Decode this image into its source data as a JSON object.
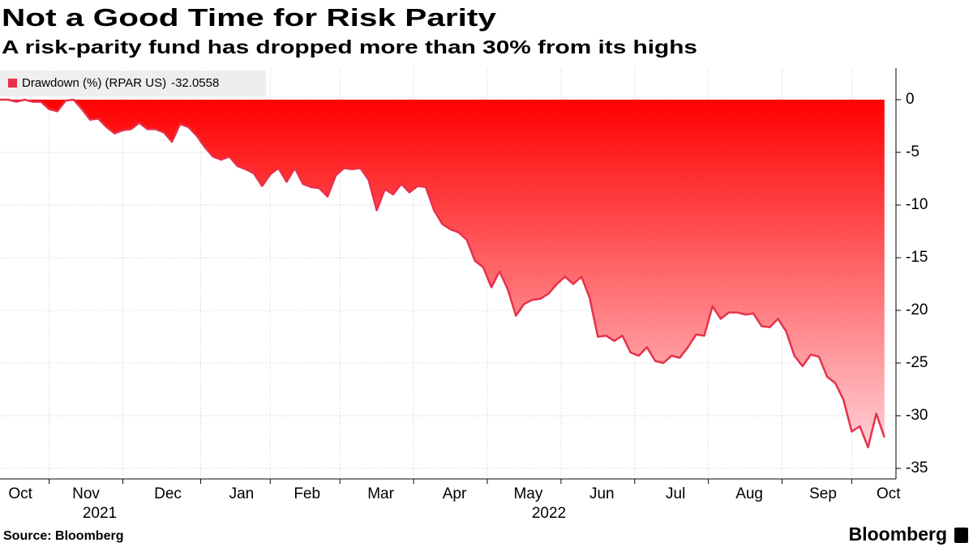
{
  "chart_data": {
    "type": "area",
    "title": "Not a Good Time for Risk Parity",
    "subtitle": "A risk-parity fund has dropped more than 30% from its highs",
    "source": "Source: Bloomberg",
    "logo": "Bloomberg",
    "categories": [
      null,
      null,
      "Oct",
      null,
      null,
      null,
      null,
      null,
      null,
      null,
      "Nov",
      null,
      null,
      null,
      null,
      null,
      null,
      null,
      null,
      null,
      "Dec",
      null,
      null,
      null,
      null,
      null,
      null,
      null,
      null,
      "Jan",
      null,
      null,
      null,
      null,
      null,
      null,
      null,
      "Feb",
      null,
      null,
      null,
      null,
      null,
      null,
      null,
      null,
      "Mar",
      null,
      null,
      null,
      null,
      null,
      null,
      null,
      null,
      "Apr",
      null,
      null,
      null,
      null,
      null,
      null,
      null,
      null,
      "May",
      null,
      null,
      null,
      null,
      null,
      null,
      null,
      null,
      "Jun",
      null,
      null,
      null,
      null,
      null,
      null,
      null,
      null,
      "Jul",
      null,
      null,
      null,
      null,
      null,
      null,
      null,
      null,
      "Aug",
      null,
      null,
      null,
      null,
      null,
      null,
      null,
      null,
      "Sep",
      null,
      null,
      null,
      null,
      null,
      null,
      null,
      "Oct"
    ],
    "years": [
      "2021",
      "2022"
    ],
    "series": [
      {
        "name": "Drawdown (%) (RPAR US)",
        "color": "#e8304a",
        "values": [
          0,
          0,
          -0.2,
          0,
          -0.2,
          -0.2,
          -0.9,
          -1.1,
          -0.1,
          0,
          -0.9,
          -1.9,
          -1.8,
          -2.6,
          -3.2,
          -2.9,
          -2.8,
          -2.2,
          -2.8,
          -2.8,
          -3.1,
          -4.0,
          -2.3,
          -2.6,
          -3.4,
          -4.5,
          -5.4,
          -5.7,
          -5.4,
          -6.3,
          -6.6,
          -7.0,
          -8.2,
          -7.1,
          -6.5,
          -7.8,
          -6.5,
          -8.0,
          -8.3,
          -8.4,
          -9.2,
          -7.2,
          -6.5,
          -6.6,
          -6.5,
          -7.6,
          -10.5,
          -8.5,
          -9.0,
          -8.0,
          -8.8,
          -8.2,
          -8.3,
          -10.5,
          -11.8,
          -12.3,
          -12.6,
          -13.3,
          -15.3,
          -15.9,
          -17.8,
          -16.3,
          -18.0,
          -20.5,
          -19.4,
          -19.0,
          -18.9,
          -18.4,
          -17.5,
          -16.8,
          -17.5,
          -16.8,
          -18.8,
          -22.5,
          -22.4,
          -22.9,
          -22.4,
          -24.0,
          -24.3,
          -23.5,
          -24.8,
          -25.0,
          -24.3,
          -24.5,
          -23.5,
          -22.3,
          -22.4,
          -19.6,
          -20.8,
          -20.2,
          -20.2,
          -20.4,
          -20.3,
          -21.5,
          -21.6,
          -20.8,
          -22.0,
          -24.3,
          -25.3,
          -24.2,
          -24.4,
          -26.3,
          -26.9,
          -28.5,
          -31.5,
          -31.0,
          -33.0,
          -29.8,
          -32.0558
        ]
      }
    ],
    "ylim": [
      -36,
      3
    ],
    "yticks": [
      0,
      -5,
      -10,
      -15,
      -20,
      -25,
      -30,
      -35
    ],
    "grid": true,
    "legend": "top-left"
  }
}
